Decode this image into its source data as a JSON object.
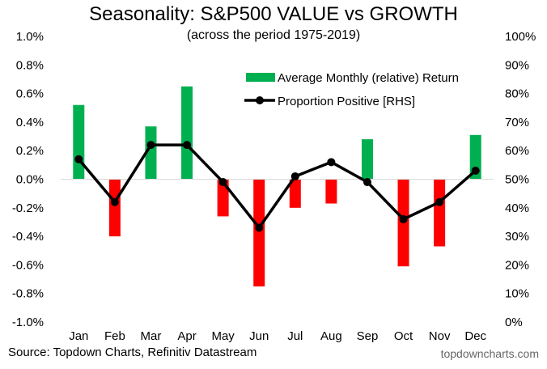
{
  "chart_data": {
    "type": "bar",
    "title": "Seasonality: S&P500 VALUE vs GROWTH",
    "subtitle": "(across the period 1975-2019)",
    "categories": [
      "Jan",
      "Feb",
      "Mar",
      "Apr",
      "May",
      "Jun",
      "Jul",
      "Aug",
      "Sep",
      "Oct",
      "Nov",
      "Dec"
    ],
    "series": [
      {
        "name": "Average Monthly (relative) Return",
        "type": "bar",
        "axis": "left",
        "values": [
          0.0052,
          -0.004,
          0.0037,
          0.0065,
          -0.0026,
          -0.0075,
          -0.002,
          -0.0017,
          0.0028,
          -0.0061,
          -0.0047,
          0.0031
        ]
      },
      {
        "name": "Proportion Positive [RHS]",
        "type": "line",
        "axis": "right",
        "values": [
          0.57,
          0.42,
          0.62,
          0.62,
          0.49,
          0.33,
          0.51,
          0.56,
          0.49,
          0.36,
          0.42,
          0.53
        ]
      }
    ],
    "y_left": {
      "ylim": [
        -0.01,
        0.01
      ],
      "ticks": [
        "1.0%",
        "0.8%",
        "0.6%",
        "0.4%",
        "0.2%",
        "0.0%",
        "-0.2%",
        "-0.4%",
        "-0.6%",
        "-0.8%",
        "-1.0%"
      ]
    },
    "y_right": {
      "ylim": [
        0,
        1
      ],
      "ticks": [
        "100%",
        "90%",
        "80%",
        "70%",
        "60%",
        "50%",
        "40%",
        "30%",
        "20%",
        "10%",
        "0%"
      ]
    },
    "legend_position": "top-right",
    "grid": false,
    "colors": {
      "positive": "#00B050",
      "negative": "#FF0000",
      "line": "#000000"
    }
  },
  "footer": {
    "source": "Source: Topdown Charts, Refinitiv Datastream",
    "site": "topdowncharts.com"
  }
}
